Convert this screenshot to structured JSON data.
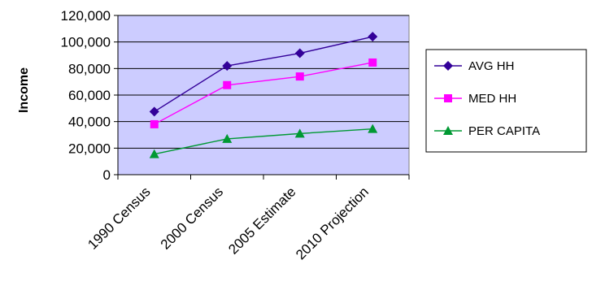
{
  "chart_data": {
    "type": "line",
    "ylabel": "Income",
    "xlabel": "",
    "categories": [
      "1990 Census",
      "2000 Census",
      "2005 Estimate",
      "2010 Projection"
    ],
    "ylim": [
      0,
      120000
    ],
    "yticks": [
      0,
      20000,
      40000,
      60000,
      80000,
      100000,
      120000
    ],
    "ytick_labels": [
      "0",
      "20,000",
      "40,000",
      "60,000",
      "80,000",
      "100,000",
      "120,000"
    ],
    "grid": true,
    "legend_position": "right",
    "plot_background": "#CCCCFF",
    "series": [
      {
        "name": "AVG HH",
        "color": "#330099",
        "marker": "diamond",
        "values": [
          47500,
          82000,
          91500,
          104000
        ]
      },
      {
        "name": "MED HH",
        "color": "#FF00FF",
        "marker": "square",
        "values": [
          38000,
          67500,
          74000,
          84500
        ]
      },
      {
        "name": "PER CAPITA",
        "color": "#009933",
        "marker": "triangle",
        "values": [
          15500,
          27000,
          31000,
          34500
        ]
      }
    ]
  }
}
